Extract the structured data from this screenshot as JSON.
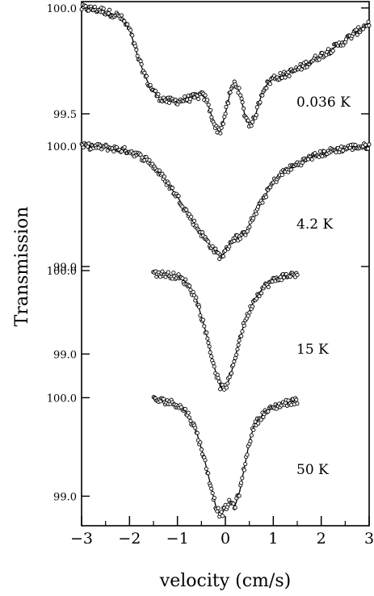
{
  "chart_data": {
    "type": "scatter",
    "title": "",
    "xlabel": "velocity (cm/s)",
    "ylabel": "Transmission",
    "xlim": [
      -3,
      3
    ],
    "x_ticks": [
      -3,
      -2,
      -1,
      0,
      1,
      2,
      3
    ],
    "x_tick_labels": [
      "−3",
      "−2",
      "−1",
      "0",
      "1",
      "2",
      "3"
    ],
    "grid": false,
    "legend": "none",
    "panels": [
      {
        "temperature_label": "0.036 K",
        "ylim": [
          99.37,
          100.03
        ],
        "y_ticks": [
          100.0,
          99.5
        ],
        "y_tick_labels": [
          "100.0",
          "99.5"
        ],
        "x_range": [
          -3,
          3
        ],
        "fit_curve": [
          [
            -3.0,
            100.0
          ],
          [
            -2.6,
            99.99
          ],
          [
            -2.2,
            99.96
          ],
          [
            -2.0,
            99.9
          ],
          [
            -1.8,
            99.75
          ],
          [
            -1.6,
            99.64
          ],
          [
            -1.4,
            99.58
          ],
          [
            -1.2,
            99.56
          ],
          [
            -1.0,
            99.56
          ],
          [
            -0.8,
            99.57
          ],
          [
            -0.6,
            99.58
          ],
          [
            -0.5,
            99.59
          ],
          [
            -0.4,
            99.57
          ],
          [
            -0.3,
            99.5
          ],
          [
            -0.2,
            99.43
          ],
          [
            -0.1,
            99.42
          ],
          [
            0.0,
            99.5
          ],
          [
            0.1,
            99.6
          ],
          [
            0.2,
            99.65
          ],
          [
            0.3,
            99.6
          ],
          [
            0.4,
            99.5
          ],
          [
            0.5,
            99.45
          ],
          [
            0.6,
            99.47
          ],
          [
            0.7,
            99.55
          ],
          [
            0.8,
            99.62
          ],
          [
            1.0,
            99.67
          ],
          [
            1.2,
            99.68
          ],
          [
            1.5,
            99.71
          ],
          [
            1.8,
            99.75
          ],
          [
            2.1,
            99.79
          ],
          [
            2.4,
            99.83
          ],
          [
            2.7,
            99.88
          ],
          [
            3.0,
            99.93
          ]
        ]
      },
      {
        "temperature_label": "4.2 K",
        "ylim": [
          98.98,
          100.04
        ],
        "y_ticks": [
          100.0,
          99.0
        ],
        "y_tick_labels": [
          "100.0",
          "99.0"
        ],
        "x_range": [
          -3,
          3
        ],
        "fit_curve": [
          [
            -3.0,
            100.0
          ],
          [
            -2.5,
            99.99
          ],
          [
            -2.0,
            99.96
          ],
          [
            -1.6,
            99.88
          ],
          [
            -1.3,
            99.74
          ],
          [
            -1.0,
            99.58
          ],
          [
            -0.8,
            99.45
          ],
          [
            -0.6,
            99.33
          ],
          [
            -0.4,
            99.22
          ],
          [
            -0.2,
            99.12
          ],
          [
            -0.1,
            99.08
          ],
          [
            0.0,
            99.12
          ],
          [
            0.1,
            99.2
          ],
          [
            0.2,
            99.24
          ],
          [
            0.3,
            99.24
          ],
          [
            0.4,
            99.27
          ],
          [
            0.6,
            99.42
          ],
          [
            0.8,
            99.57
          ],
          [
            1.0,
            99.7
          ],
          [
            1.2,
            99.78
          ],
          [
            1.5,
            99.85
          ],
          [
            1.8,
            99.91
          ],
          [
            2.2,
            99.96
          ],
          [
            2.6,
            99.99
          ],
          [
            3.0,
            100.0
          ]
        ]
      },
      {
        "temperature_label": "15 K",
        "ylim": [
          98.5,
          100.02
        ],
        "y_ticks": [
          100.0,
          99.0
        ],
        "y_tick_labels": [
          "100.0",
          "99.0"
        ],
        "x_range": [
          -1.5,
          1.5
        ],
        "fit_curve": [
          [
            -1.5,
            99.97
          ],
          [
            -1.2,
            99.95
          ],
          [
            -1.0,
            99.93
          ],
          [
            -0.8,
            99.85
          ],
          [
            -0.6,
            99.65
          ],
          [
            -0.4,
            99.25
          ],
          [
            -0.3,
            99.0
          ],
          [
            -0.2,
            98.78
          ],
          [
            -0.1,
            98.6
          ],
          [
            0.0,
            98.6
          ],
          [
            0.1,
            98.72
          ],
          [
            0.2,
            98.95
          ],
          [
            0.3,
            99.18
          ],
          [
            0.4,
            99.38
          ],
          [
            0.6,
            99.65
          ],
          [
            0.8,
            99.8
          ],
          [
            1.0,
            99.88
          ],
          [
            1.2,
            99.93
          ],
          [
            1.5,
            99.96
          ]
        ]
      },
      {
        "temperature_label": "50 K",
        "ylim": [
          98.7,
          100.02
        ],
        "y_ticks": [
          100.0,
          99.0
        ],
        "y_tick_labels": [
          "100.0",
          "99.0"
        ],
        "x_range": [
          -1.5,
          1.5
        ],
        "fit_curve": [
          [
            -1.5,
            99.98
          ],
          [
            -1.2,
            99.96
          ],
          [
            -1.0,
            99.93
          ],
          [
            -0.8,
            99.85
          ],
          [
            -0.6,
            99.65
          ],
          [
            -0.45,
            99.4
          ],
          [
            -0.3,
            99.1
          ],
          [
            -0.2,
            98.9
          ],
          [
            -0.1,
            98.8
          ],
          [
            0.0,
            98.88
          ],
          [
            0.1,
            98.94
          ],
          [
            0.2,
            98.9
          ],
          [
            0.3,
            99.05
          ],
          [
            0.4,
            99.3
          ],
          [
            0.5,
            99.55
          ],
          [
            0.6,
            99.72
          ],
          [
            0.8,
            99.84
          ],
          [
            1.0,
            99.9
          ],
          [
            1.2,
            99.94
          ],
          [
            1.5,
            99.97
          ]
        ]
      }
    ]
  }
}
